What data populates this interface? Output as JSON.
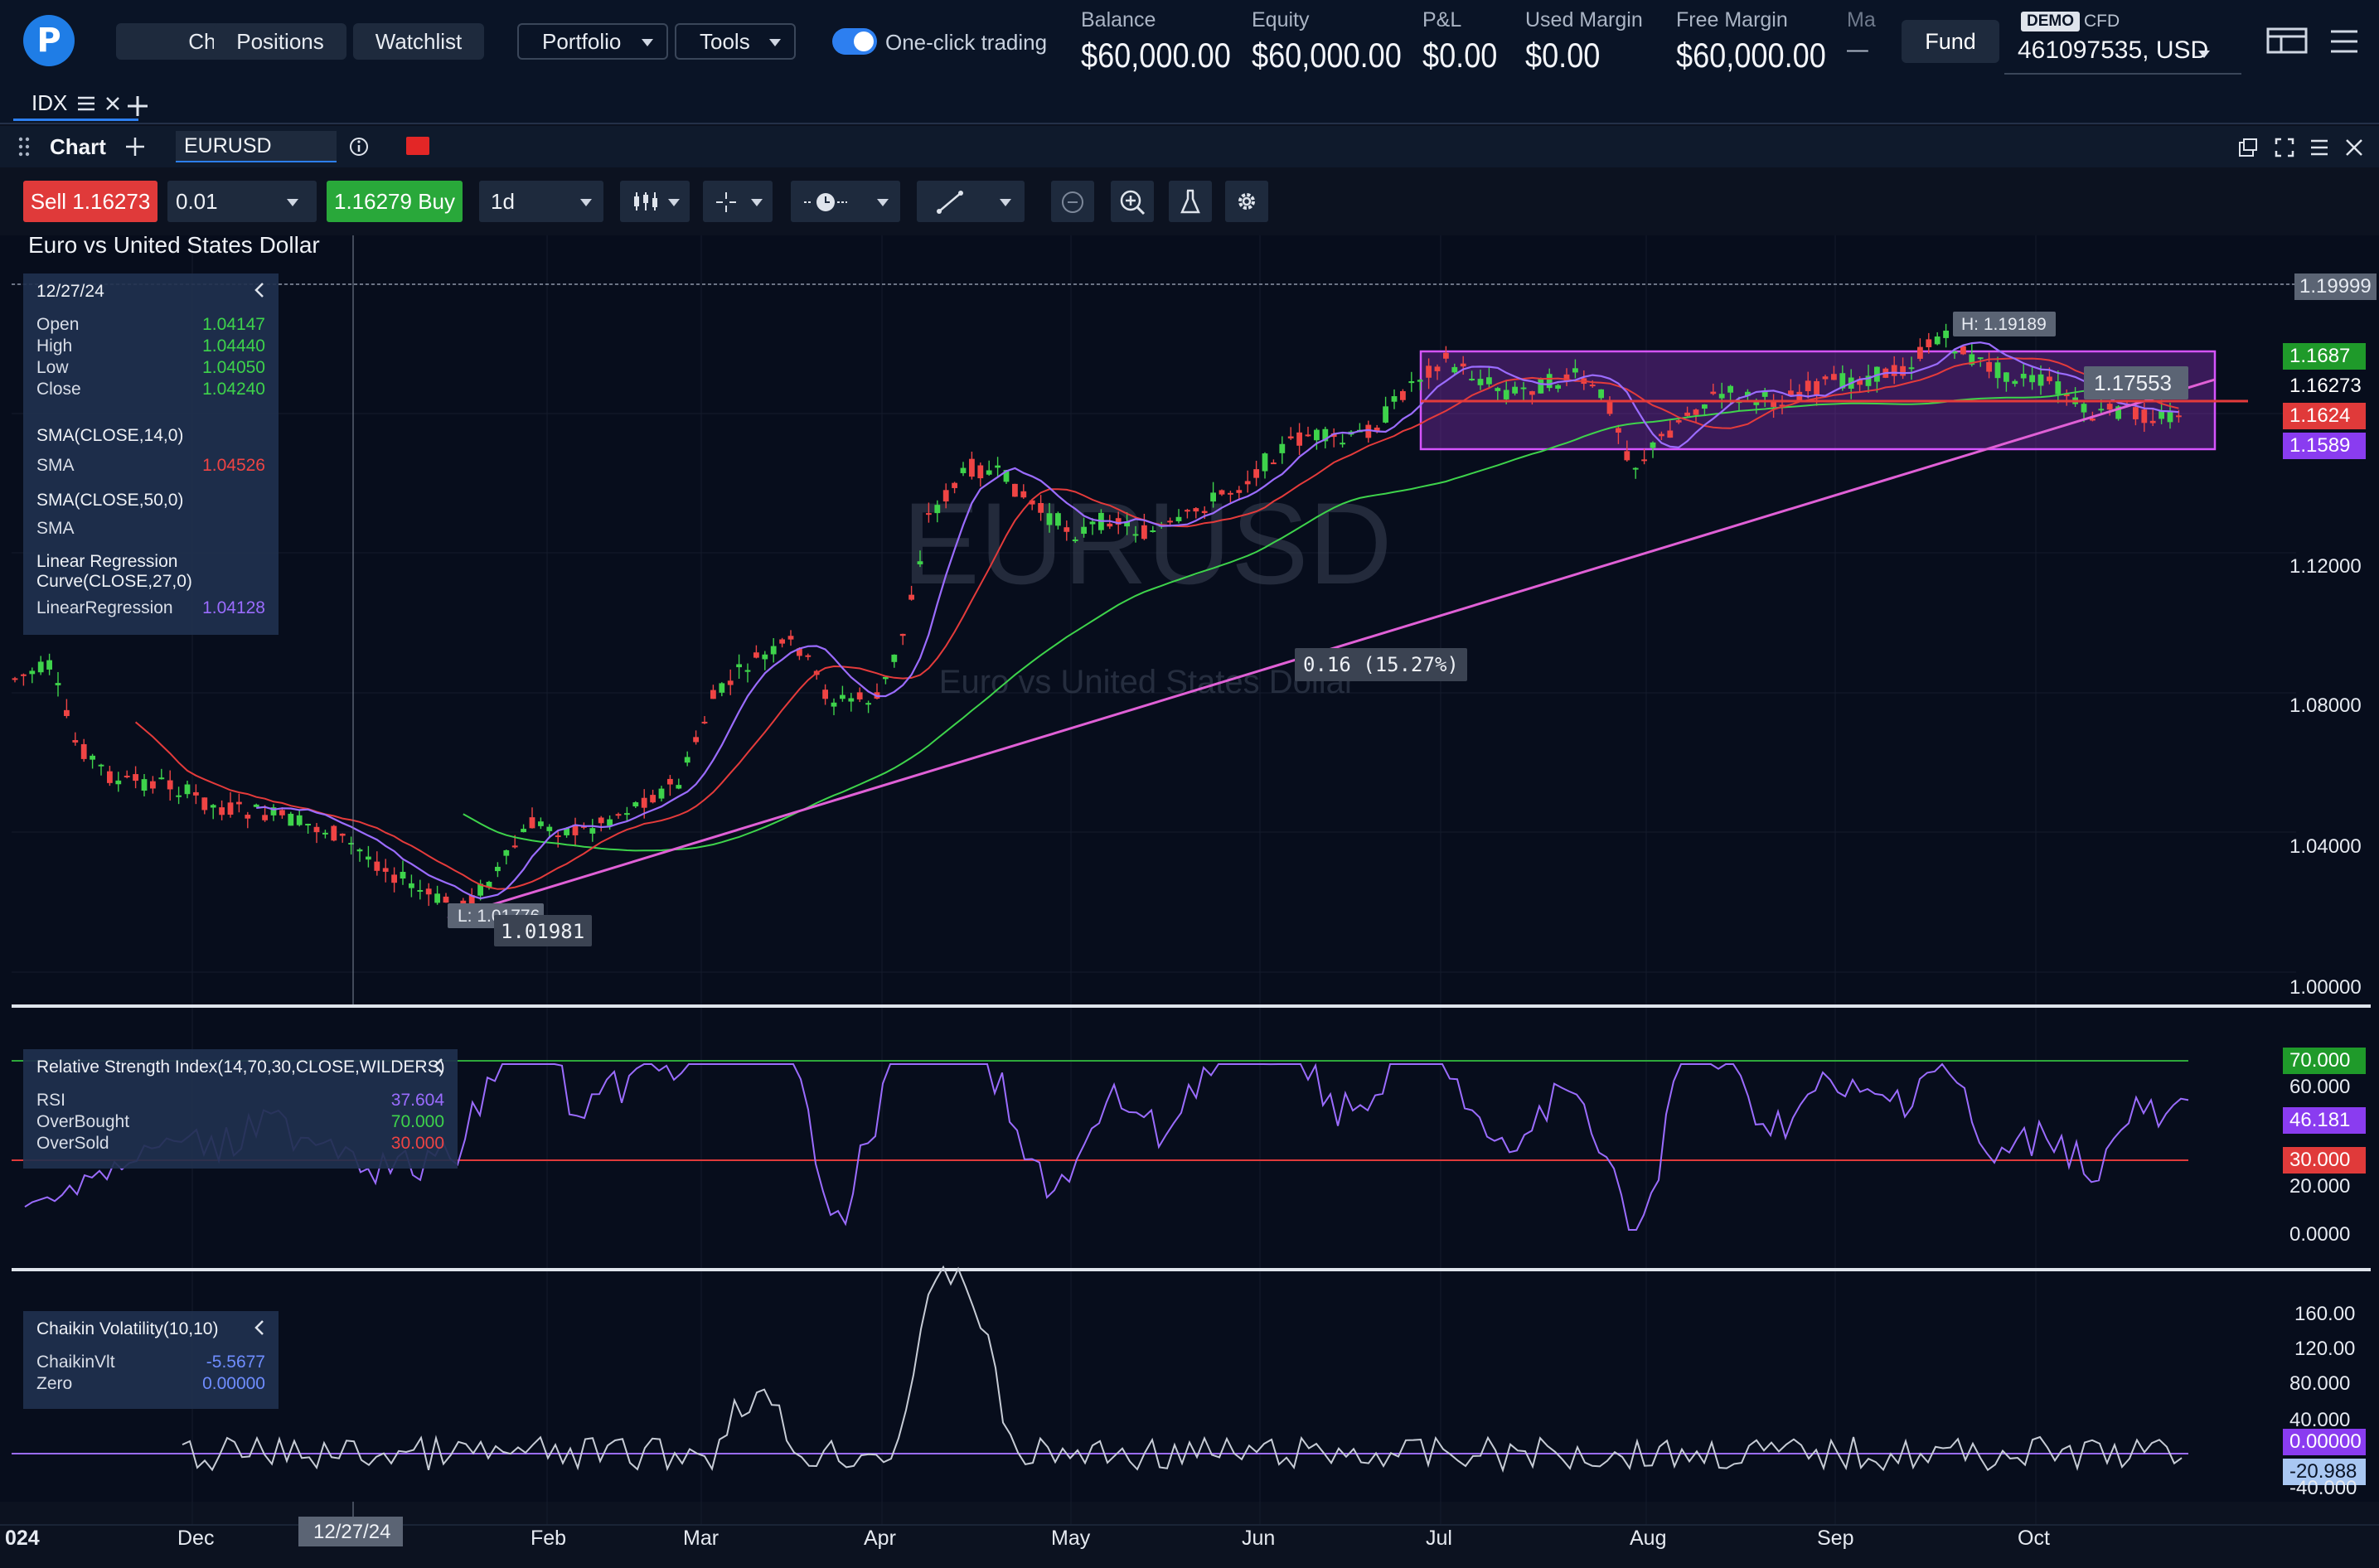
{
  "topbar": {
    "nav": [
      "Chart",
      "Positions",
      "Watchlist"
    ],
    "portfolio": "Portfolio",
    "tools": "Tools",
    "one_click": "One-click trading",
    "metrics": [
      {
        "label": "Balance",
        "value": "$60,000.00"
      },
      {
        "label": "Equity",
        "value": "$60,000.00"
      },
      {
        "label": "P&L",
        "value": "$0.00"
      },
      {
        "label": "Used Margin",
        "value": "$0.00"
      },
      {
        "label": "Free Margin",
        "value": "$60,000.00"
      },
      {
        "label": "Ma",
        "value": "—"
      }
    ],
    "fund": "Fund",
    "demo": "DEMO",
    "cfd": "CFD",
    "account": "461097535, USD"
  },
  "tabs": {
    "active": "IDX"
  },
  "panel": {
    "title": "Chart",
    "symbol": "EURUSD"
  },
  "toolbar": {
    "sell_label": "Sell",
    "sell_price": "1.16273",
    "qty": "0.01",
    "buy_price": "1.16279",
    "buy_label": "Buy",
    "timeframe": "1d"
  },
  "chart": {
    "title": "Euro vs United States Dollar",
    "watermark_symbol": "EURUSD",
    "watermark_name": "Euro vs United States Dollar",
    "high_label": "H: 1.19189",
    "low_label": "L: 1.01776",
    "low_value": "1.01981",
    "box_value": "1.17553",
    "measure": "0.16 (15.27%)",
    "crosshair_date": "12/27/24",
    "price_axis": [
      "1.19999",
      "1.12000",
      "1.08000",
      "1.04000",
      "1.00000"
    ],
    "price_tags": [
      {
        "text": "1.1687",
        "bg": "#1f9a2a",
        "color": "#ffffff"
      },
      {
        "text": "1.16273",
        "bg": "transparent",
        "color": "#ffffff"
      },
      {
        "text": "1.1624",
        "bg": "#e03a3a",
        "color": "#ffffff"
      },
      {
        "text": "1.1589",
        "bg": "#8a3cf0",
        "color": "#ffffff"
      }
    ],
    "dates": [
      "024",
      "Dec",
      "Feb",
      "Mar",
      "Apr",
      "May",
      "Jun",
      "Jul",
      "Aug",
      "Sep",
      "Oct"
    ]
  },
  "ohlc_box": {
    "date": "12/27/24",
    "rows": [
      {
        "label": "Open",
        "value": "1.04147"
      },
      {
        "label": "High",
        "value": "1.04440"
      },
      {
        "label": "Low",
        "value": "1.04050"
      },
      {
        "label": "Close",
        "value": "1.04240"
      }
    ],
    "sma14_title": "SMA(CLOSE,14,0)",
    "sma14_label": "SMA",
    "sma14_value": "1.04526",
    "sma50_title": "SMA(CLOSE,50,0)",
    "sma50_label": "SMA",
    "lr_title1": "Linear Regression",
    "lr_title2": "Curve(CLOSE,27,0)",
    "lr_label": "LinearRegression",
    "lr_value": "1.04128"
  },
  "rsi_box": {
    "title": "Relative Strength Index(14,70,30,CLOSE,WILDERS)",
    "rows": [
      {
        "label": "RSI",
        "value": "37.604"
      },
      {
        "label": "OverBought",
        "value": "70.000"
      },
      {
        "label": "OverSold",
        "value": "30.000"
      }
    ],
    "axis": [
      "60.000",
      "20.000",
      "0.0000"
    ],
    "tags": [
      {
        "text": "70.000",
        "bg": "#1f9a2a"
      },
      {
        "text": "46.181",
        "bg": "#8a3cf0"
      },
      {
        "text": "30.000",
        "bg": "#e03a3a"
      }
    ]
  },
  "cv_box": {
    "title": "Chaikin Volatility(10,10)",
    "rows": [
      {
        "label": "ChaikinVlt",
        "value": "-5.5677"
      },
      {
        "label": "Zero",
        "value": "0.00000"
      }
    ],
    "axis": [
      "160.00",
      "120.00",
      "80.000",
      "40.000",
      "-40.000"
    ],
    "tags": [
      {
        "text": "0.00000",
        "bg": "#8a3cf0",
        "color": "#ffffff"
      },
      {
        "text": "-20.988",
        "bg": "#a9c7f2",
        "color": "#0a1426"
      }
    ]
  },
  "colors": {
    "bull": "#3ed34b",
    "bear": "#ef4444",
    "sma14": "#ef4444",
    "sma50": "#3ed34b",
    "lr": "#9b6cff",
    "trend": "#e060d6"
  }
}
